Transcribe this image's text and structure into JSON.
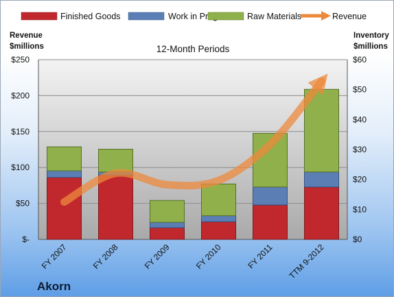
{
  "company": "Akorn",
  "chart_data": {
    "type": "bar",
    "subtitle": "12-Month Periods",
    "categories": [
      "FY 2007",
      "FY 2008",
      "FY 2009",
      "FY 2010",
      "FY 2011",
      "TTM 9-2012"
    ],
    "stacked": true,
    "left_axis": {
      "label_line1": "Revenue",
      "label_line2": "$millions",
      "ticks": [
        "$-",
        "$50",
        "$100",
        "$150",
        "$200",
        "$250"
      ],
      "range": [
        0,
        250
      ]
    },
    "right_axis": {
      "label_line1": "Inventory",
      "label_line2": "$millions",
      "ticks": [
        "$0",
        "$10",
        "$20",
        "$30",
        "$40",
        "$50",
        "$60"
      ],
      "range": [
        0,
        60
      ]
    },
    "series": [
      {
        "name": "Finished Goods",
        "axis": "right",
        "color": "#c0282d",
        "values": [
          20.7,
          21.5,
          3.9,
          5.9,
          11.5,
          17.5
        ]
      },
      {
        "name": "Work in Progress",
        "axis": "right",
        "color": "#5b7fb5",
        "values": [
          2.2,
          1.0,
          1.8,
          2.0,
          6.0,
          5.0
        ]
      },
      {
        "name": "Raw Materials",
        "axis": "right",
        "color": "#8fb04b",
        "values": [
          8.0,
          7.6,
          7.3,
          10.6,
          17.9,
          27.6
        ]
      }
    ],
    "line_series": {
      "name": "Revenue",
      "axis": "left",
      "color": "#ec8a3c",
      "values": [
        52,
        92,
        76,
        82,
        132,
        220
      ]
    },
    "legend_position": "top",
    "grid": true
  }
}
